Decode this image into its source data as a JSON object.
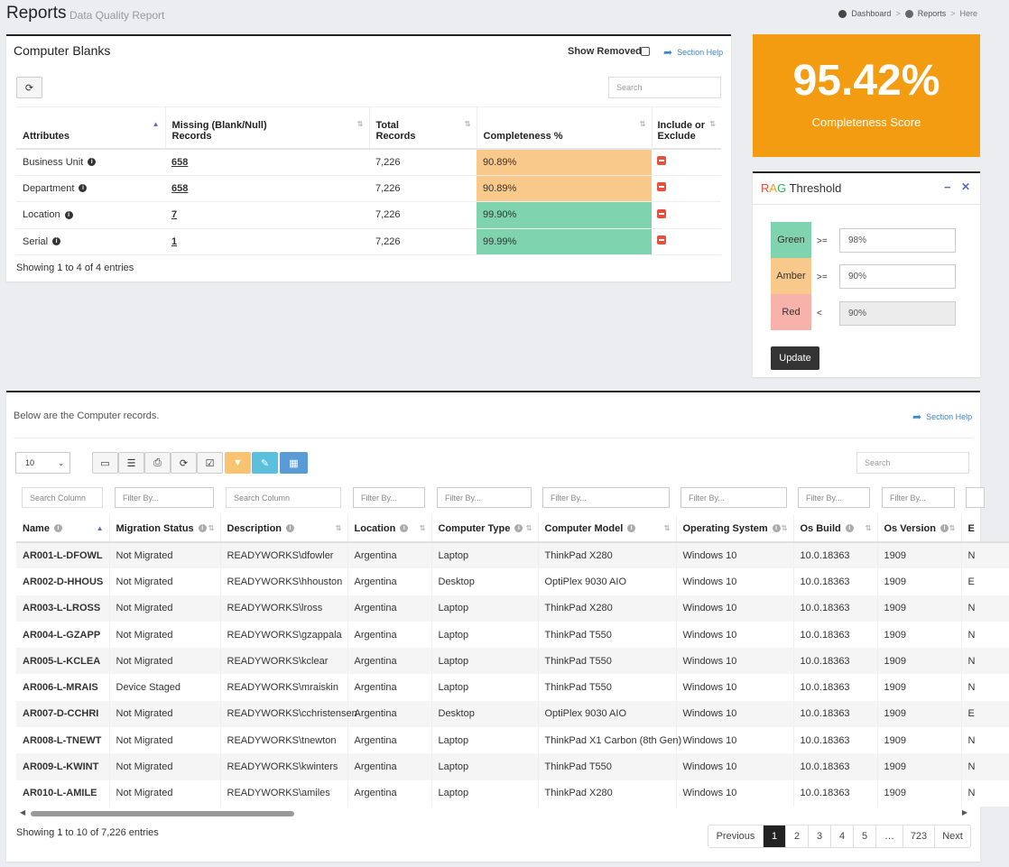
{
  "header": {
    "title": "Reports",
    "subtitle": "Data Quality Report",
    "breadcrumbs": [
      "Dashboard",
      "Reports",
      "Here"
    ]
  },
  "blanks": {
    "title": "Computer Blanks",
    "show_removed": "Show Removed",
    "section_help": "Section Help",
    "search_placeholder": "Search",
    "columns": [
      "Attributes",
      "Missing (Blank/Null) Records",
      "Total Records",
      "Completeness %",
      "Include or Exclude"
    ],
    "rows": [
      {
        "attribute": "Business Unit",
        "missing": "658",
        "total": "7,226",
        "completeness": "90.89%",
        "rag": "amber"
      },
      {
        "attribute": "Department",
        "missing": "658",
        "total": "7,226",
        "completeness": "90.89%",
        "rag": "amber"
      },
      {
        "attribute": "Location",
        "missing": "7",
        "total": "7,226",
        "completeness": "99.90%",
        "rag": "green"
      },
      {
        "attribute": "Serial",
        "missing": "1",
        "total": "7,226",
        "completeness": "99.99%",
        "rag": "green"
      }
    ],
    "footer": "Showing 1 to 4 of 4 entries"
  },
  "score": {
    "value": "95.42%",
    "label": "Completeness Score"
  },
  "rag": {
    "title_r": "R",
    "title_a": "A",
    "title_g": "G",
    "title_rest": " Threshold",
    "rows": [
      {
        "label": "Green",
        "op": ">=",
        "value": "98%"
      },
      {
        "label": "Amber",
        "op": ">=",
        "value": "90%"
      },
      {
        "label": "Red",
        "op": "<",
        "value": "90%"
      }
    ],
    "update": "Update",
    "colors": {
      "green": "#7fd3ae",
      "amber": "#f8c98a",
      "red": "#f6b2ab",
      "orange": "#f39c12"
    }
  },
  "records": {
    "intro": "Below are the Computer records.",
    "section_help": "Section Help",
    "page_size": "10",
    "search_placeholder": "Search",
    "search_column": "Search Column",
    "filter_by": "Filter By...",
    "toolbar_icons": [
      "monitor-icon",
      "list-icon",
      "export-icon",
      "refresh-icon",
      "check-icon",
      "filter-icon",
      "edit-icon",
      "calendar-icon"
    ],
    "columns": [
      "Name",
      "Migration Status",
      "Description",
      "Location",
      "Computer Type",
      "Computer Model",
      "Operating System",
      "Os Build",
      "Os Version",
      "E"
    ],
    "rows": [
      [
        "AR001-L-DFOWL",
        "Not Migrated",
        "READYWORKS\\dfowler",
        "Argentina",
        "Laptop",
        "ThinkPad X280",
        "Windows 10",
        "10.0.18363",
        "1909",
        "N"
      ],
      [
        "AR002-D-HHOUS",
        "Not Migrated",
        "READYWORKS\\hhouston",
        "Argentina",
        "Desktop",
        "OptiPlex 9030 AIO",
        "Windows 10",
        "10.0.18363",
        "1909",
        "E"
      ],
      [
        "AR003-L-LROSS",
        "Not Migrated",
        "READYWORKS\\lross",
        "Argentina",
        "Laptop",
        "ThinkPad X280",
        "Windows 10",
        "10.0.18363",
        "1909",
        "N"
      ],
      [
        "AR004-L-GZAPP",
        "Not Migrated",
        "READYWORKS\\gzappala",
        "Argentina",
        "Laptop",
        "ThinkPad T550",
        "Windows 10",
        "10.0.18363",
        "1909",
        "N"
      ],
      [
        "AR005-L-KCLEA",
        "Not Migrated",
        "READYWORKS\\kclear",
        "Argentina",
        "Laptop",
        "ThinkPad T550",
        "Windows 10",
        "10.0.18363",
        "1909",
        "N"
      ],
      [
        "AR006-L-MRAIS",
        "Device Staged",
        "READYWORKS\\mraiskin",
        "Argentina",
        "Laptop",
        "ThinkPad T550",
        "Windows 10",
        "10.0.18363",
        "1909",
        "N"
      ],
      [
        "AR007-D-CCHRI",
        "Not Migrated",
        "READYWORKS\\cchristensen",
        "Argentina",
        "Desktop",
        "OptiPlex 9030 AIO",
        "Windows 10",
        "10.0.18363",
        "1909",
        "E"
      ],
      [
        "AR008-L-TNEWT",
        "Not Migrated",
        "READYWORKS\\tnewton",
        "Argentina",
        "Laptop",
        "ThinkPad X1 Carbon (8th Gen)",
        "Windows 10",
        "10.0.18363",
        "1909",
        "N"
      ],
      [
        "AR009-L-KWINT",
        "Not Migrated",
        "READYWORKS\\kwinters",
        "Argentina",
        "Laptop",
        "ThinkPad T550",
        "Windows 10",
        "10.0.18363",
        "1909",
        "N"
      ],
      [
        "AR010-L-AMILE",
        "Not Migrated",
        "READYWORKS\\amiles",
        "Argentina",
        "Laptop",
        "ThinkPad X280",
        "Windows 10",
        "10.0.18363",
        "1909",
        "N"
      ]
    ],
    "footer": "Showing 1 to 10 of 7,226 entries",
    "pager": [
      "Previous",
      "1",
      "2",
      "3",
      "4",
      "5",
      "…",
      "723",
      "Next"
    ]
  }
}
